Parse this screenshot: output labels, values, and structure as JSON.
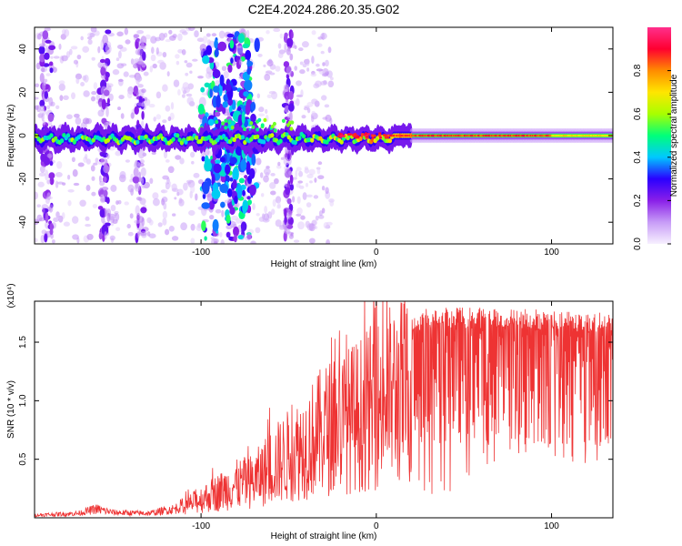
{
  "title": "C2E4.2024.286.20.35.G02",
  "chart_data": [
    {
      "type": "heatmap",
      "xlabel": "Height of straight line (km)",
      "ylabel": "Frequency (Hz)",
      "xlim": [
        -195,
        135
      ],
      "ylim": [
        -50,
        50
      ],
      "xticks": [
        {
          "value": -100,
          "label": "-100"
        },
        {
          "value": 0,
          "label": "0"
        },
        {
          "value": 100,
          "label": "100"
        }
      ],
      "yticks": [
        {
          "value": -40,
          "label": "-40"
        },
        {
          "value": -20,
          "label": "-20"
        },
        {
          "value": 0,
          "label": "0"
        },
        {
          "value": 20,
          "label": "20"
        },
        {
          "value": 40,
          "label": "40"
        }
      ],
      "colorbar": {
        "label": "Normalized spectral amplitude",
        "range": [
          0,
          1
        ],
        "ticks": [
          {
            "value": 0.0,
            "label": "0.0"
          },
          {
            "value": 0.2,
            "label": "0.2"
          },
          {
            "value": 0.4,
            "label": "0.4"
          },
          {
            "value": 0.6,
            "label": "0.6"
          },
          {
            "value": 0.8,
            "label": "0.8"
          }
        ],
        "colormap": [
          "#f7f0ff",
          "#c79cf7",
          "#8a1fe8",
          "#2a00ff",
          "#00c8ff",
          "#00ff7a",
          "#a8ff00",
          "#ffe600",
          "#ff8c00",
          "#ff0030",
          "#ff2f8c"
        ]
      }
    },
    {
      "type": "line",
      "xlabel": "Height of straight line (km)",
      "ylabel": "SNR (10 * v/v)",
      "scale_label": "(x10⁴)",
      "xlim": [
        -195,
        135
      ],
      "ylim": [
        0,
        1.85
      ],
      "xticks": [
        {
          "value": -100,
          "label": "-100"
        },
        {
          "value": 0,
          "label": "0"
        },
        {
          "value": 100,
          "label": "100"
        }
      ],
      "yticks": [
        {
          "value": 0.5,
          "label": "0.5"
        },
        {
          "value": 1.0,
          "label": "1.0"
        },
        {
          "value": 1.5,
          "label": "1.5"
        }
      ],
      "color": "#ee3333",
      "envelope": {
        "x": [
          -195,
          -170,
          -160,
          -150,
          -130,
          -115,
          -100,
          -90,
          -80,
          -70,
          -60,
          -50,
          -40,
          -30,
          -20,
          -10,
          0,
          10,
          20,
          30,
          40,
          60,
          80,
          100,
          120,
          135
        ],
        "y": [
          0.03,
          0.05,
          0.1,
          0.06,
          0.05,
          0.1,
          0.25,
          0.35,
          0.45,
          0.5,
          0.7,
          0.85,
          1.0,
          1.2,
          1.3,
          1.4,
          1.55,
          1.7,
          1.75,
          1.8,
          1.8,
          1.8,
          1.8,
          1.78,
          1.76,
          1.75
        ]
      }
    }
  ]
}
